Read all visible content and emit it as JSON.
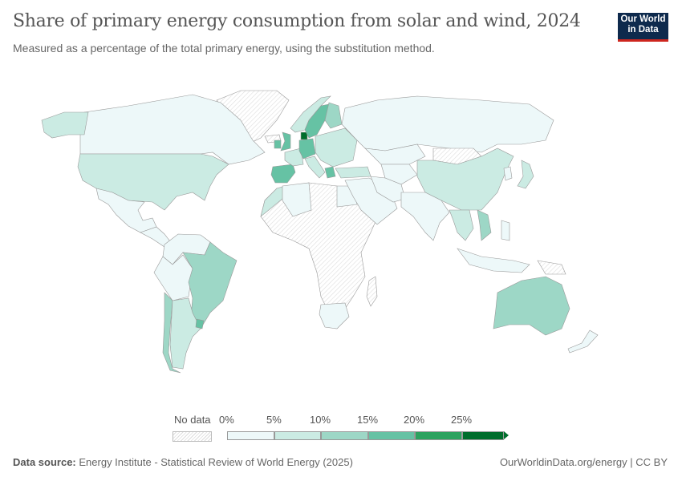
{
  "title": "Share of primary energy consumption from solar and wind, 2024",
  "subtitle": "Measured as a percentage of the total primary energy, using the substitution method.",
  "logo": {
    "line1": "Our World",
    "line2": "in Data"
  },
  "legend": {
    "no_data_label": "No data",
    "ticks": [
      "0%",
      "5%",
      "10%",
      "15%",
      "20%",
      "25%"
    ],
    "bins": [
      {
        "range": "0-5%",
        "color": "#edf8f9"
      },
      {
        "range": "5-10%",
        "color": "#cbebe3"
      },
      {
        "range": "10-15%",
        "color": "#9dd7c6"
      },
      {
        "range": "15-20%",
        "color": "#66c2a4"
      },
      {
        "range": "20-25%",
        "color": "#2ca25f"
      },
      {
        "range": ">25%",
        "color": "#006d2c"
      }
    ]
  },
  "footer": {
    "source_label": "Data source:",
    "source": "Energy Institute - Statistical Review of World Energy (2025)",
    "credit": "OurWorldinData.org/energy | CC BY"
  },
  "regions": [
    {
      "id": "canada",
      "bin": 0
    },
    {
      "id": "alaska",
      "bin": 1
    },
    {
      "id": "usa",
      "bin": 1
    },
    {
      "id": "mexico",
      "bin": 0
    },
    {
      "id": "central-america",
      "bin": 0
    },
    {
      "id": "greenland",
      "bin": -1
    },
    {
      "id": "colombia-venezuela",
      "bin": 0
    },
    {
      "id": "peru-bolivia",
      "bin": 0
    },
    {
      "id": "brazil",
      "bin": 2
    },
    {
      "id": "chile",
      "bin": 2
    },
    {
      "id": "argentina",
      "bin": 1
    },
    {
      "id": "uruguay",
      "bin": 3
    },
    {
      "id": "africa",
      "bin": -1
    },
    {
      "id": "morocco",
      "bin": 1
    },
    {
      "id": "algeria",
      "bin": 0
    },
    {
      "id": "egypt",
      "bin": 0
    },
    {
      "id": "south-africa",
      "bin": 0
    },
    {
      "id": "iberia",
      "bin": 3
    },
    {
      "id": "france",
      "bin": 1
    },
    {
      "id": "uk",
      "bin": 3
    },
    {
      "id": "ireland",
      "bin": 3
    },
    {
      "id": "germany",
      "bin": 3
    },
    {
      "id": "denmark",
      "bin": 5
    },
    {
      "id": "norway",
      "bin": 1
    },
    {
      "id": "sweden",
      "bin": 3
    },
    {
      "id": "finland",
      "bin": 2
    },
    {
      "id": "italy",
      "bin": 1
    },
    {
      "id": "greece",
      "bin": 3
    },
    {
      "id": "eastern-europe",
      "bin": 1
    },
    {
      "id": "turkey",
      "bin": 1
    },
    {
      "id": "russia",
      "bin": 0
    },
    {
      "id": "kazakhstan",
      "bin": 0
    },
    {
      "id": "middle-east",
      "bin": 0
    },
    {
      "id": "iran",
      "bin": 0
    },
    {
      "id": "central-asia",
      "bin": 0
    },
    {
      "id": "mongolia",
      "bin": -1
    },
    {
      "id": "china",
      "bin": 1
    },
    {
      "id": "india",
      "bin": 0
    },
    {
      "id": "southeast-asia",
      "bin": 1
    },
    {
      "id": "vietnam",
      "bin": 2
    },
    {
      "id": "indonesia",
      "bin": 0
    },
    {
      "id": "philippines",
      "bin": 0
    },
    {
      "id": "png",
      "bin": -1
    },
    {
      "id": "japan",
      "bin": 1
    },
    {
      "id": "korea",
      "bin": 0
    },
    {
      "id": "australia",
      "bin": 2
    },
    {
      "id": "new-zealand",
      "bin": 0
    },
    {
      "id": "madagascar",
      "bin": -1
    },
    {
      "id": "iceland",
      "bin": -1
    }
  ]
}
